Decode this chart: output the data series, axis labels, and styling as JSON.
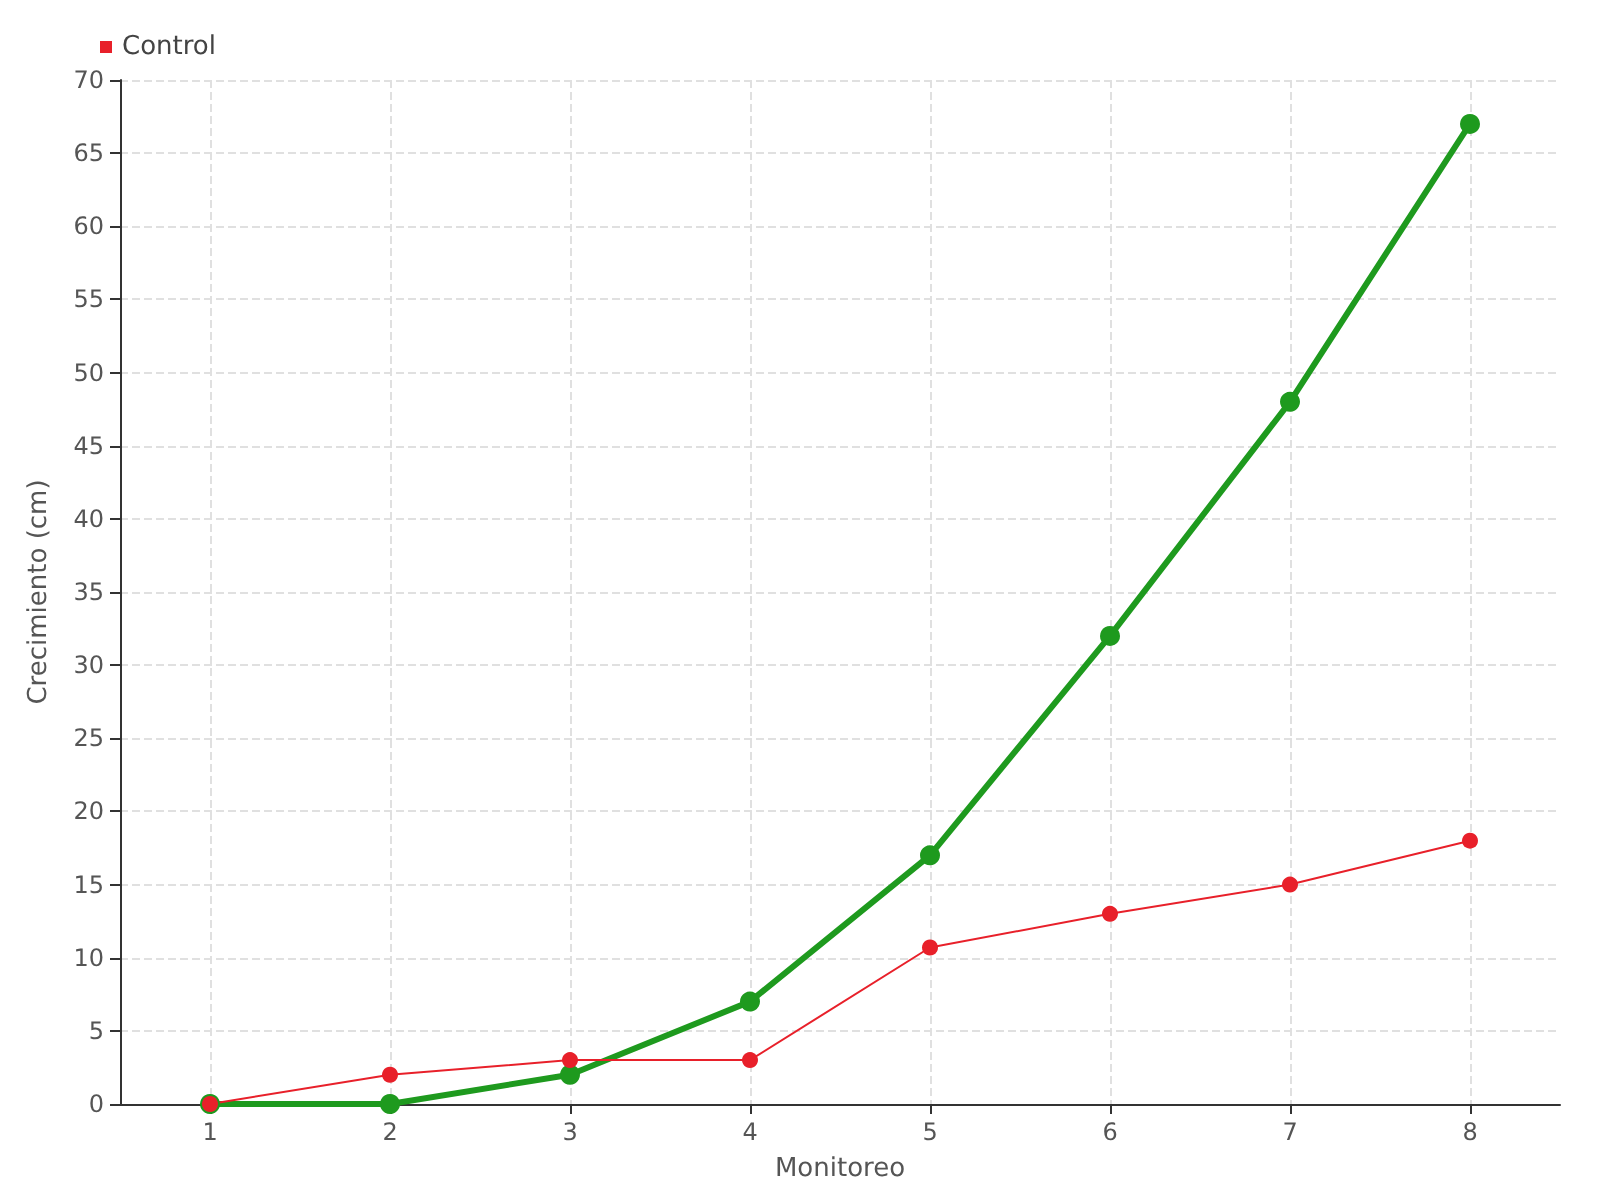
{
  "chart_data": {
    "type": "line",
    "xlabel": "Monitoreo",
    "ylabel": "Crecimiento (cm)",
    "x": [
      1,
      2,
      3,
      4,
      5,
      6,
      7,
      8
    ],
    "series": [
      {
        "color": "#1e9a1e",
        "values": [
          0,
          0,
          2,
          7,
          17,
          32,
          48,
          67
        ]
      },
      {
        "name": "Control",
        "color": "#e8202a",
        "values": [
          0,
          2,
          3,
          3,
          10.7,
          13,
          15,
          18
        ]
      }
    ],
    "xlim": [
      0.5,
      8.5
    ],
    "xticks": [
      1,
      2,
      3,
      4,
      5,
      6,
      7,
      8
    ],
    "ylim": [
      0,
      70
    ],
    "yticks": [
      0,
      5,
      10,
      15,
      20,
      25,
      30,
      35,
      40,
      45,
      50,
      55,
      60,
      65,
      70
    ],
    "grid": true,
    "legend": "top left",
    "marker": "circle"
  }
}
